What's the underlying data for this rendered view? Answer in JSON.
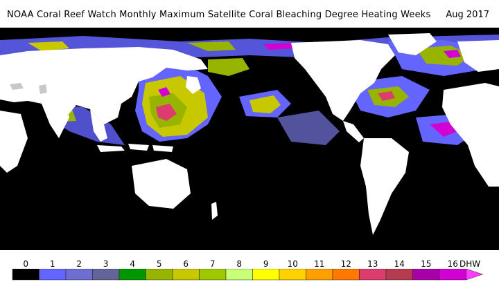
{
  "title": "NOAA Coral Reef Watch Monthly Maximum Satellite Coral Bleaching Degree Heating Weeks",
  "date": "Aug 2017",
  "legend": {
    "unit": "DHW",
    "labels": [
      "0",
      "1",
      "2",
      "3",
      "4",
      "5",
      "6",
      "7",
      "8",
      "9",
      "10",
      "11",
      "12",
      "13",
      "14",
      "15",
      "16"
    ],
    "colors": [
      "#000000",
      "#6464ff",
      "#6e6ed2",
      "#64649b",
      "#009600",
      "#96b400",
      "#c8c800",
      "#a0c800",
      "#c8ff78",
      "#ffff00",
      "#ffd200",
      "#ffa000",
      "#ff7800",
      "#dc3c6e",
      "#b43c50",
      "#aa00aa",
      "#d200d2"
    ]
  },
  "colors": {
    "ocean": "#000000",
    "land": "#ffffff",
    "ice": "#c8c8c8"
  }
}
